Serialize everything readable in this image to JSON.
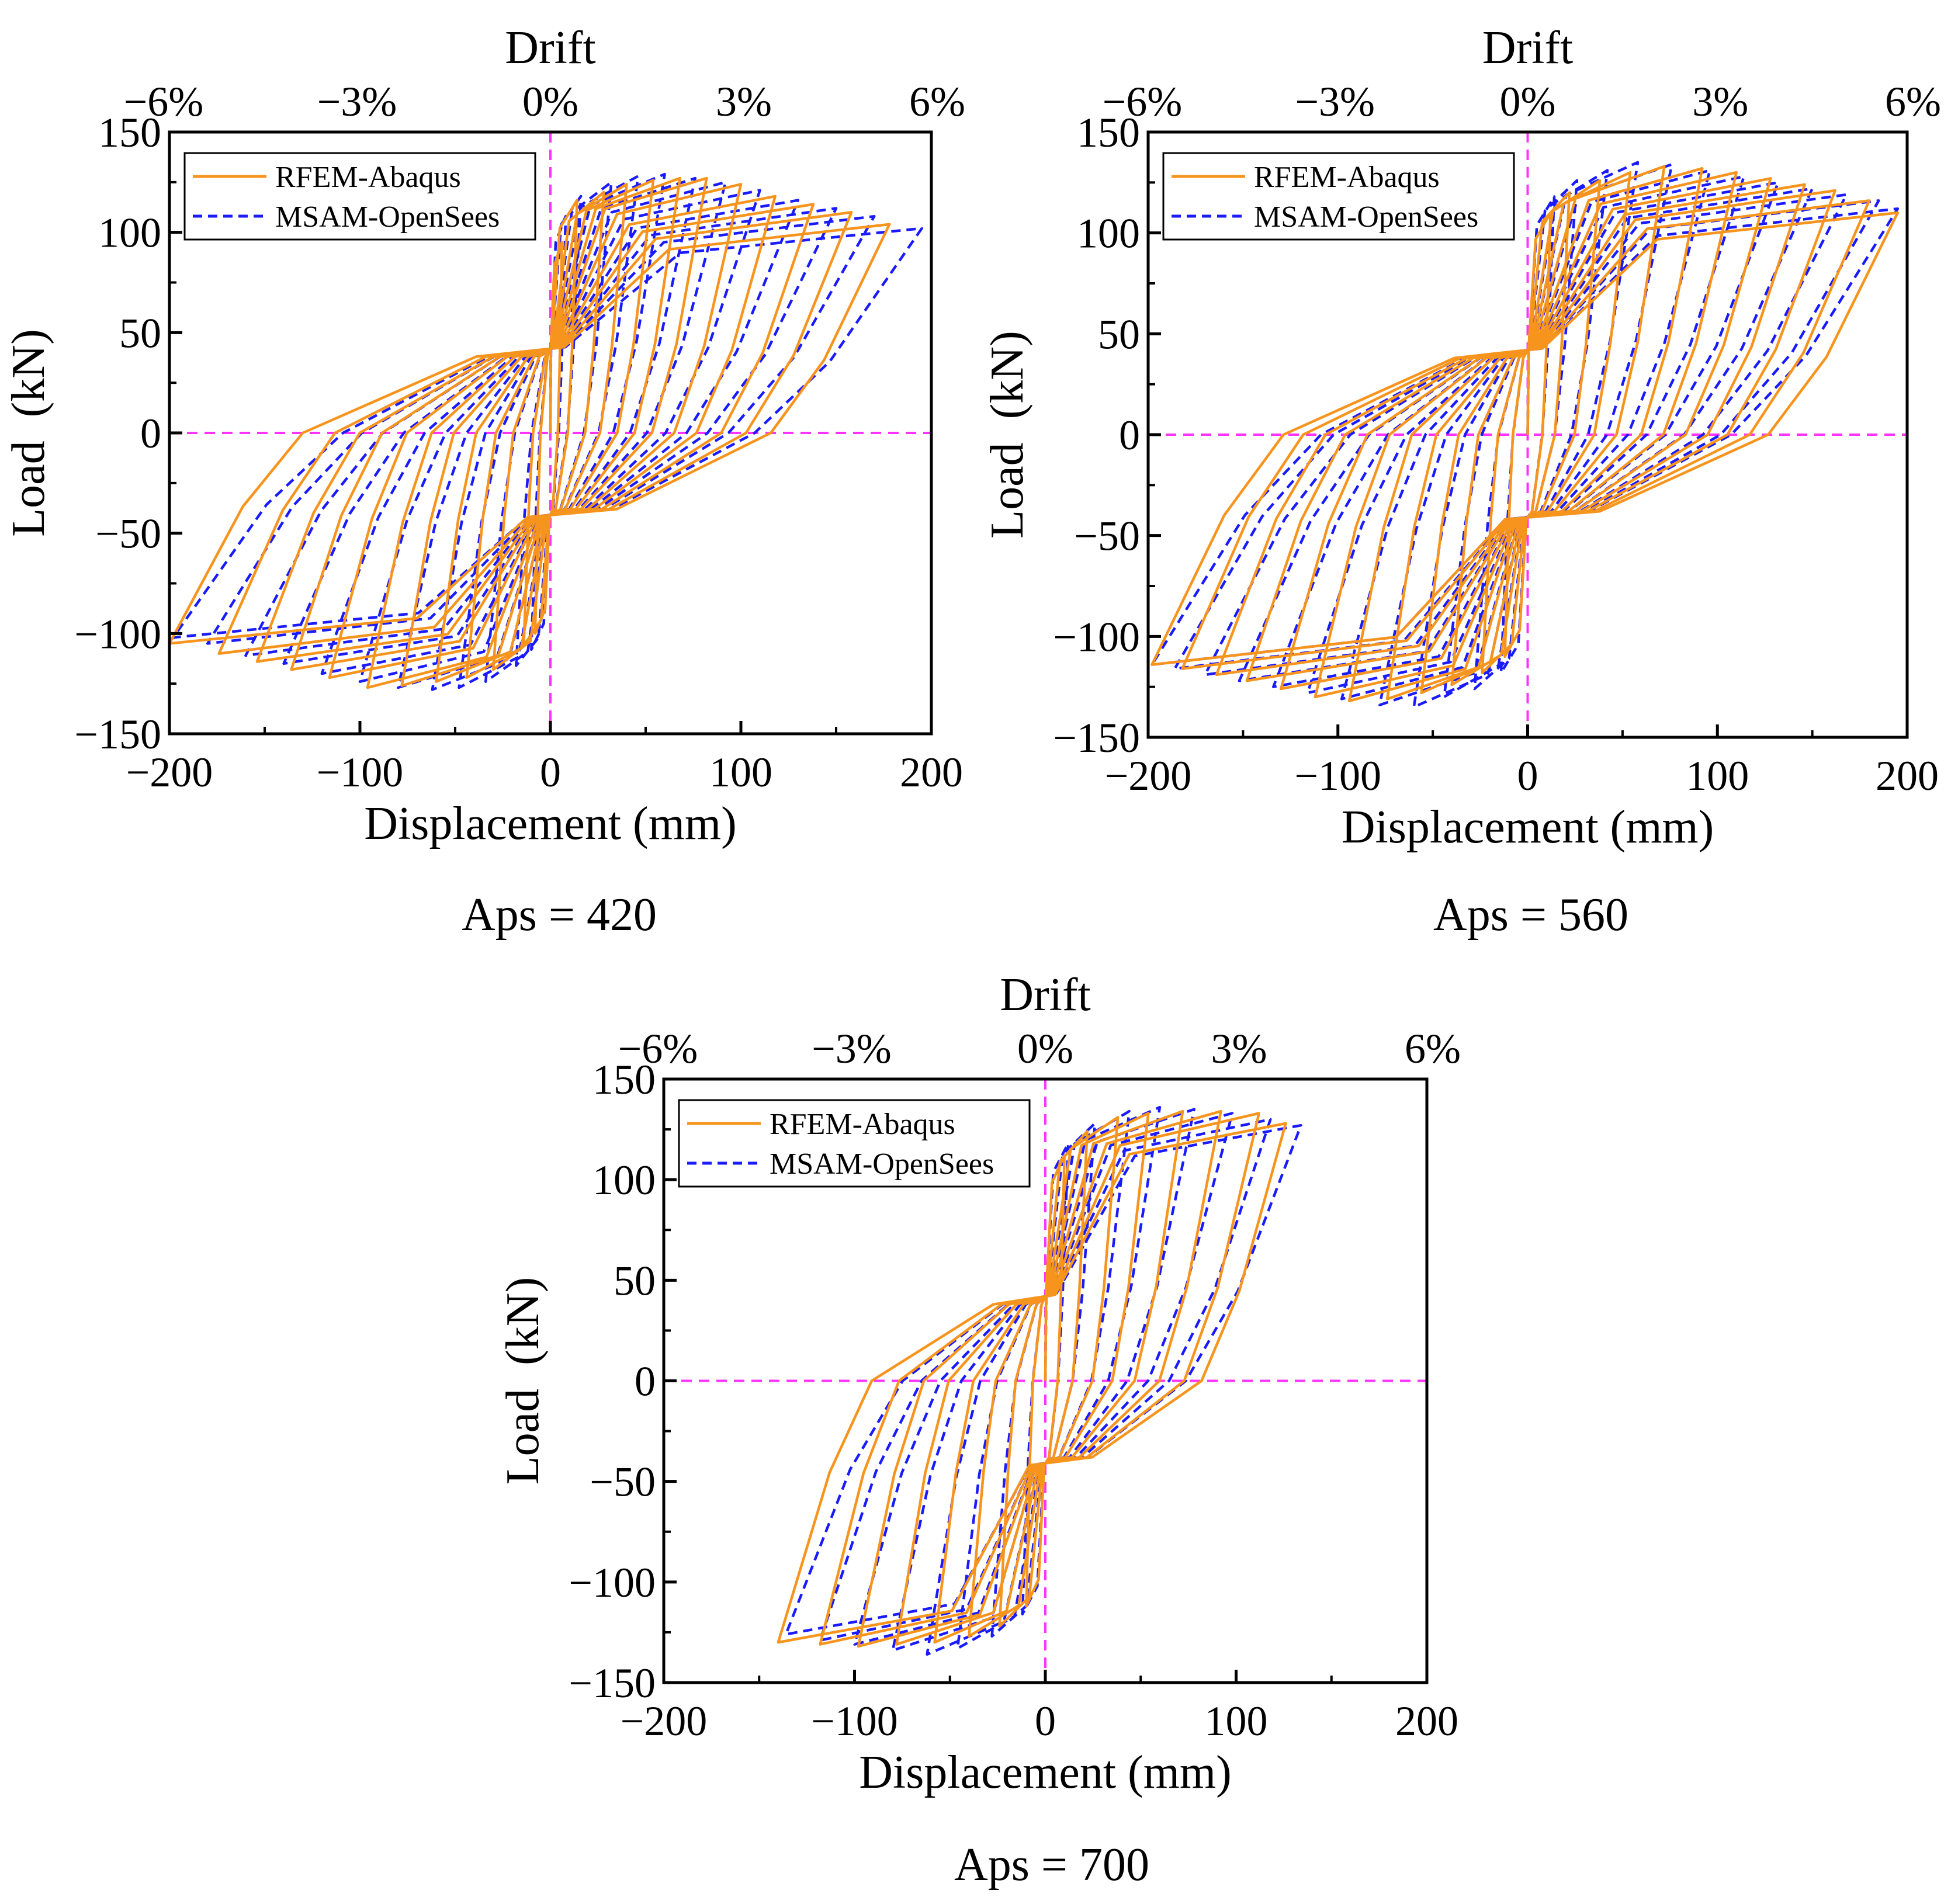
{
  "colors": {
    "rfem": "#f7941d",
    "msam": "#1a1aff",
    "reference": "#ff33ff",
    "axis": "#000000"
  },
  "chart_data": [
    {
      "type": "line",
      "caption": "Aps = 420",
      "xlabel": "Displacement (mm)",
      "ylabel": "Load  (kN)",
      "top_axis_title": "Drift",
      "xlim": [
        -200,
        200
      ],
      "ylim": [
        -150,
        150
      ],
      "x_ticks": [
        "−200",
        "−100",
        "0",
        "100",
        "200"
      ],
      "y_ticks": [
        "−150",
        "−100",
        "−50",
        "0",
        "50",
        "100",
        "150"
      ],
      "drift_ticks": [
        "−6%",
        "−3%",
        "0%",
        "3%",
        "6%"
      ],
      "legend": [
        "RFEM-Abaqus",
        "MSAM-OpenSees"
      ],
      "legend_position": "top-left",
      "reference_lines": "dashed x = 0 and y = 0",
      "peaks_rfem": {
        "positive": [
          [
            6,
            95
          ],
          [
            14,
            116
          ],
          [
            28,
            120
          ],
          [
            40,
            124
          ],
          [
            54,
            126
          ],
          [
            68,
            127
          ],
          [
            82,
            127
          ],
          [
            100,
            124
          ],
          [
            118,
            118
          ],
          [
            138,
            114
          ],
          [
            158,
            110
          ],
          [
            178,
            104
          ],
          [
            195,
            102
          ]
        ],
        "negative": [
          [
            -8,
            -100
          ],
          [
            -14,
            -106
          ],
          [
            -30,
            -118
          ],
          [
            -44,
            -122
          ],
          [
            -60,
            -124
          ],
          [
            -78,
            -126
          ],
          [
            -96,
            -127
          ],
          [
            -116,
            -122
          ],
          [
            -136,
            -118
          ],
          [
            -154,
            -114
          ],
          [
            -174,
            -110
          ],
          [
            -200,
            -105
          ]
        ]
      },
      "peaks_msam": {
        "positive": [
          [
            8,
            108
          ],
          [
            16,
            118
          ],
          [
            32,
            125
          ],
          [
            46,
            128
          ],
          [
            60,
            129
          ],
          [
            76,
            127
          ],
          [
            92,
            125
          ],
          [
            110,
            121
          ],
          [
            130,
            116
          ],
          [
            150,
            112
          ],
          [
            170,
            108
          ],
          [
            195,
            102
          ]
        ],
        "negative": [
          [
            -10,
            -108
          ],
          [
            -18,
            -116
          ],
          [
            -34,
            -124
          ],
          [
            -48,
            -127
          ],
          [
            -62,
            -128
          ],
          [
            -80,
            -127
          ],
          [
            -100,
            -124
          ],
          [
            -120,
            -120
          ],
          [
            -140,
            -115
          ],
          [
            -160,
            -111
          ],
          [
            -180,
            -105
          ],
          [
            -198,
            -102
          ]
        ]
      }
    },
    {
      "type": "line",
      "caption": "Aps = 560",
      "xlabel": "Displacement (mm)",
      "ylabel": "Load  (kN)",
      "top_axis_title": "Drift",
      "xlim": [
        -200,
        200
      ],
      "ylim": [
        -150,
        150
      ],
      "x_ticks": [
        "−200",
        "−100",
        "0",
        "100",
        "200"
      ],
      "y_ticks": [
        "−150",
        "−100",
        "−50",
        "0",
        "50",
        "100",
        "150"
      ],
      "drift_ticks": [
        "−6%",
        "−3%",
        "0%",
        "3%",
        "6%"
      ],
      "legend": [
        "RFEM-Abaqus",
        "MSAM-OpenSees"
      ],
      "legend_position": "top-left",
      "reference_lines": "dashed x = 0 and y = 0",
      "peaks_rfem": {
        "positive": [
          [
            12,
            110
          ],
          [
            22,
            120
          ],
          [
            38,
            126
          ],
          [
            54,
            130
          ],
          [
            72,
            133
          ],
          [
            92,
            132
          ],
          [
            110,
            130
          ],
          [
            128,
            127
          ],
          [
            146,
            124
          ],
          [
            162,
            121
          ],
          [
            180,
            116
          ],
          [
            195,
            110
          ]
        ],
        "negative": [
          [
            -12,
            -110
          ],
          [
            -24,
            -118
          ],
          [
            -40,
            -124
          ],
          [
            -56,
            -128
          ],
          [
            -74,
            -131
          ],
          [
            -94,
            -132
          ],
          [
            -112,
            -130
          ],
          [
            -130,
            -126
          ],
          [
            -148,
            -122
          ],
          [
            -164,
            -119
          ],
          [
            -182,
            -116
          ],
          [
            -198,
            -114
          ]
        ]
      },
      "peaks_msam": {
        "positive": [
          [
            14,
            118
          ],
          [
            26,
            126
          ],
          [
            42,
            131
          ],
          [
            58,
            135
          ],
          [
            76,
            134
          ],
          [
            96,
            131
          ],
          [
            114,
            128
          ],
          [
            132,
            125
          ],
          [
            150,
            122
          ],
          [
            168,
            119
          ],
          [
            185,
            116
          ],
          [
            195,
            112
          ]
        ],
        "negative": [
          [
            -14,
            -118
          ],
          [
            -28,
            -126
          ],
          [
            -44,
            -130
          ],
          [
            -60,
            -135
          ],
          [
            -78,
            -134
          ],
          [
            -98,
            -131
          ],
          [
            -116,
            -128
          ],
          [
            -134,
            -125
          ],
          [
            -152,
            -122
          ],
          [
            -170,
            -119
          ],
          [
            -186,
            -116
          ],
          [
            -198,
            -114
          ]
        ]
      }
    },
    {
      "type": "line",
      "caption": "Aps = 700",
      "xlabel": "Displacement (mm)",
      "ylabel": "Load  (kN)",
      "top_axis_title": "Drift",
      "xlim": [
        -200,
        200
      ],
      "ylim": [
        -150,
        150
      ],
      "x_ticks": [
        "−200",
        "−100",
        "0",
        "100",
        "200"
      ],
      "y_ticks": [
        "−150",
        "−100",
        "−50",
        "0",
        "50",
        "100",
        "150"
      ],
      "drift_ticks": [
        "−6%",
        "−3%",
        "0%",
        "3%",
        "6%"
      ],
      "legend": [
        "RFEM-Abaqus",
        "MSAM-OpenSees"
      ],
      "legend_position": "top-left",
      "reference_lines": "dashed x = 0 and y = 0",
      "peaks_rfem": {
        "positive": [
          [
            10,
            112
          ],
          [
            22,
            124
          ],
          [
            38,
            131
          ],
          [
            54,
            133
          ],
          [
            72,
            134
          ],
          [
            92,
            134
          ],
          [
            112,
            133
          ],
          [
            126,
            128
          ]
        ],
        "negative": [
          [
            -10,
            -112
          ],
          [
            -24,
            -122
          ],
          [
            -40,
            -127
          ],
          [
            -58,
            -130
          ],
          [
            -78,
            -131
          ],
          [
            -98,
            -132
          ],
          [
            -118,
            -131
          ],
          [
            -140,
            -130
          ]
        ]
      },
      "peaks_msam": {
        "positive": [
          [
            12,
            118
          ],
          [
            26,
            128
          ],
          [
            44,
            134
          ],
          [
            60,
            136
          ],
          [
            78,
            135
          ],
          [
            98,
            133
          ],
          [
            118,
            130
          ],
          [
            134,
            127
          ]
        ],
        "negative": [
          [
            -12,
            -116
          ],
          [
            -28,
            -127
          ],
          [
            -46,
            -133
          ],
          [
            -62,
            -136
          ],
          [
            -80,
            -134
          ],
          [
            -100,
            -131
          ],
          [
            -118,
            -129
          ],
          [
            -136,
            -126
          ]
        ]
      }
    }
  ]
}
